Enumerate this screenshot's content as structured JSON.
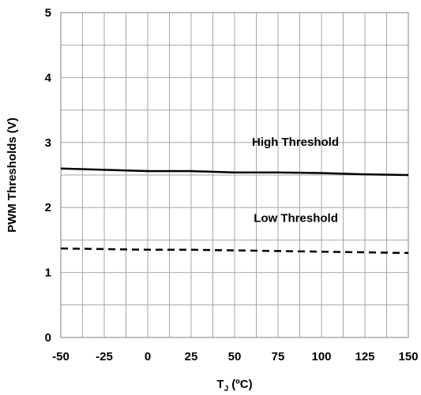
{
  "chart_data": {
    "type": "line",
    "xlabel": "T",
    "xlabel_sub": "J",
    "xlabel_unit": " (ºC)",
    "ylabel": "PWM Thresholds (V)",
    "xlim": [
      -50,
      150
    ],
    "ylim": [
      0,
      5
    ],
    "x_ticks": [
      -50,
      -25,
      0,
      25,
      50,
      75,
      100,
      125,
      150
    ],
    "y_ticks": [
      0,
      1,
      2,
      3,
      4,
      5
    ],
    "grid": true,
    "minor_x_step": 12.5,
    "minor_y_step": 0.5,
    "series": [
      {
        "name": "High Threshold",
        "style": "solid",
        "color": "#000000",
        "x": [
          -50,
          -25,
          0,
          25,
          50,
          75,
          100,
          125,
          150
        ],
        "y": [
          2.6,
          2.58,
          2.56,
          2.56,
          2.54,
          2.54,
          2.53,
          2.51,
          2.5
        ]
      },
      {
        "name": "Low Threshold",
        "style": "dashed",
        "color": "#000000",
        "x": [
          -50,
          -25,
          0,
          25,
          50,
          75,
          100,
          125,
          150
        ],
        "y": [
          1.37,
          1.36,
          1.35,
          1.35,
          1.34,
          1.33,
          1.32,
          1.31,
          1.3
        ]
      }
    ],
    "labels": [
      {
        "text": "High Threshold",
        "x": 60,
        "y": 2.95
      },
      {
        "text": "Low Threshold",
        "x": 61,
        "y": 1.78
      }
    ]
  }
}
